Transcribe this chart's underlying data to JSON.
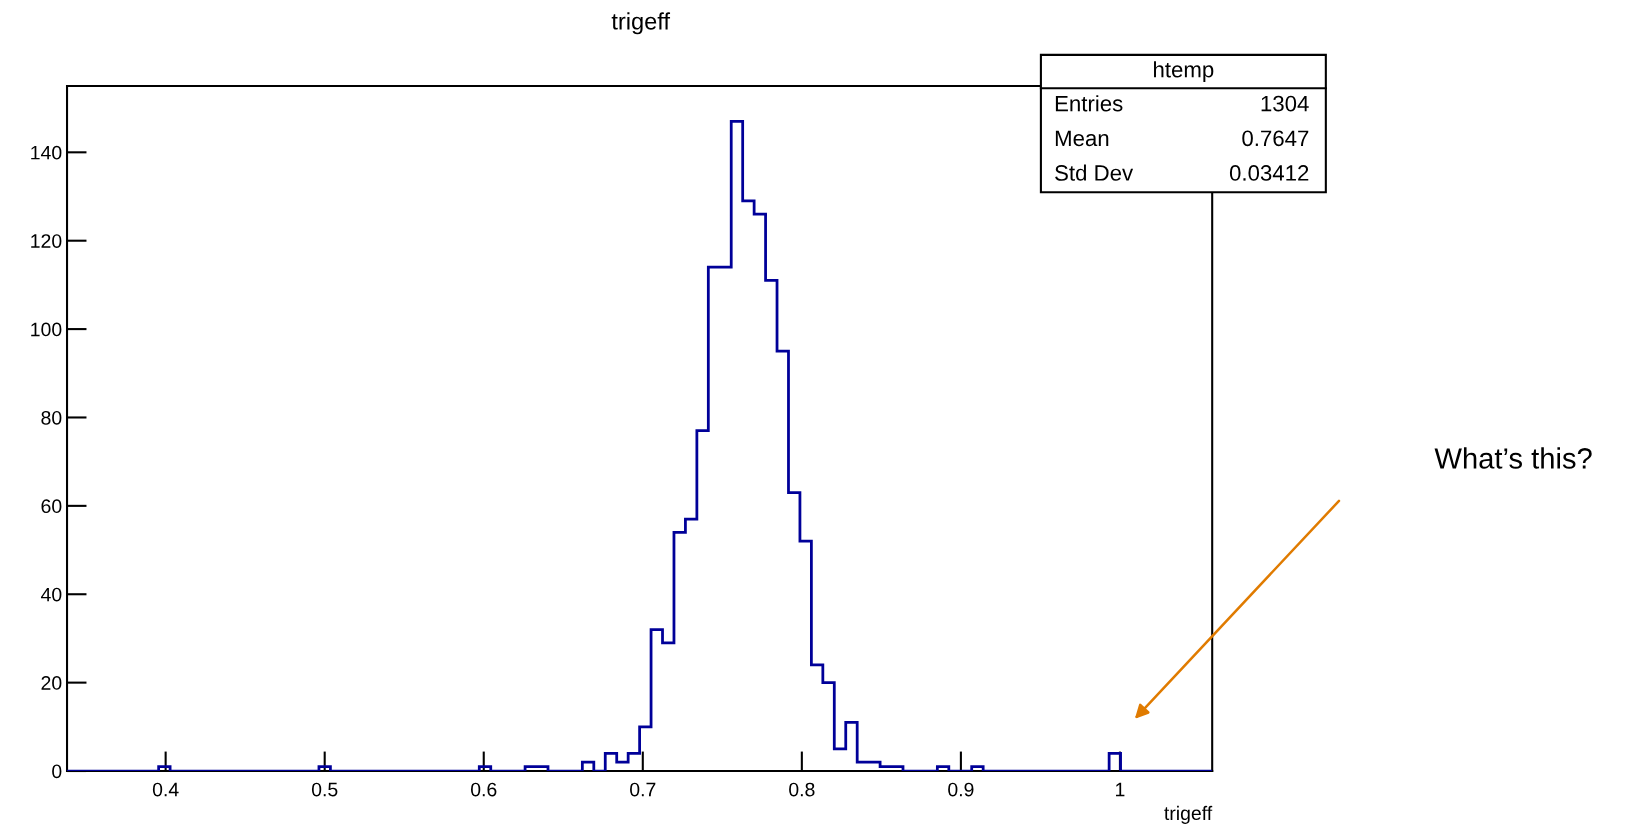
{
  "chart_data": {
    "type": "histogram",
    "title": "trigeff",
    "xlabel": "trigeff",
    "bins": [
      0.338,
      0.3452,
      0.3524,
      0.3596,
      0.3668,
      0.374,
      0.3812,
      0.3884,
      0.3956,
      0.4028,
      0.41,
      0.4172,
      0.4244,
      0.4316,
      0.4388,
      0.446,
      0.4532,
      0.4604,
      0.4676,
      0.4748,
      0.482,
      0.4892,
      0.4964,
      0.5036,
      0.5108,
      0.518,
      0.5252,
      0.5324,
      0.5396,
      0.5468,
      0.554,
      0.5612,
      0.5684,
      0.5756,
      0.5828,
      0.59,
      0.5972,
      0.6044,
      0.6116,
      0.6188,
      0.626,
      0.6332,
      0.6404,
      0.6476,
      0.6548,
      0.662,
      0.6692,
      0.6764,
      0.6836,
      0.6908,
      0.698,
      0.7052,
      0.7124,
      0.7196,
      0.7268,
      0.734,
      0.7412,
      0.7484,
      0.7556,
      0.7628,
      0.77,
      0.7772,
      0.7844,
      0.7916,
      0.7988,
      0.806,
      0.8132,
      0.8204,
      0.8276,
      0.8348,
      0.842,
      0.8492,
      0.8564,
      0.8636,
      0.8708,
      0.878,
      0.8852,
      0.8924,
      0.8996,
      0.9068,
      0.914,
      0.9212,
      0.9284,
      0.9356,
      0.9428,
      0.95,
      0.9572,
      0.9644,
      0.9716,
      0.9788,
      0.986,
      0.9932,
      1.0004,
      1.0076,
      1.0148,
      1.022,
      1.0292,
      1.0364,
      1.0436,
      1.0508,
      1.058
    ],
    "values": [
      0,
      0,
      0,
      0,
      0,
      0,
      0,
      0,
      1,
      0,
      0,
      0,
      0,
      0,
      0,
      0,
      0,
      0,
      0,
      0,
      0,
      0,
      1,
      0,
      0,
      0,
      0,
      0,
      0,
      0,
      0,
      0,
      0,
      0,
      0,
      0,
      1,
      0,
      0,
      0,
      1,
      1,
      0,
      0,
      0,
      2,
      0,
      4,
      2,
      4,
      10,
      32,
      29,
      54,
      57,
      77,
      114,
      114,
      147,
      129,
      126,
      111,
      95,
      63,
      52,
      24,
      20,
      5,
      11,
      2,
      2,
      1,
      1,
      0,
      0,
      0,
      1,
      0,
      0,
      1,
      0,
      0,
      0,
      0,
      0,
      0,
      0,
      0,
      0,
      0,
      0,
      4,
      0,
      0,
      0,
      0,
      0,
      0,
      0,
      0
    ],
    "color": "#000099",
    "xlim": [
      0.338,
      1.058
    ],
    "ylim": [
      0,
      155
    ],
    "xticks": [
      0.4,
      0.5,
      0.6,
      0.7,
      0.8,
      0.9,
      1
    ],
    "yticks": [
      0,
      20,
      40,
      60,
      80,
      100,
      120,
      140
    ],
    "grid": false,
    "annotations": [
      "htemp",
      "Entries",
      "1304",
      "Mean",
      "0.7647",
      "Std Dev",
      "0.03412",
      "What’s this?"
    ]
  }
}
